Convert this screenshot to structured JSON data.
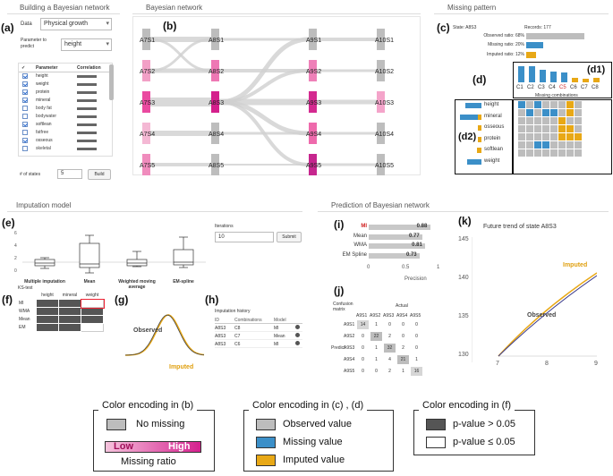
{
  "panels": {
    "build": "Building a Bayesian network",
    "bayes": "Bayesian network",
    "missing": "Missing pattern",
    "impute": "Imputation model",
    "predict": "Prediction of Bayesian network"
  },
  "labels": {
    "a": "(a)",
    "b": "(b)",
    "c": "(c)",
    "d": "(d)",
    "d1": "(d1)",
    "d2": "(d2)",
    "e": "(e)",
    "f": "(f)",
    "g": "(g)",
    "h": "(h)",
    "i": "(i)",
    "j": "(j)",
    "k": "(k)"
  },
  "build": {
    "data_label": "Data",
    "data_value": "Physical growth",
    "param_label": "Parameter to predict",
    "param_value": "height",
    "col_check": "✓",
    "col_param": "Parameter",
    "col_corr": "Correlation",
    "params": [
      {
        "name": "height",
        "checked": true
      },
      {
        "name": "weight",
        "checked": true
      },
      {
        "name": "protein",
        "checked": true
      },
      {
        "name": "mineral",
        "checked": true
      },
      {
        "name": "body fat",
        "checked": false
      },
      {
        "name": "bodywater",
        "checked": false
      },
      {
        "name": "softlean",
        "checked": true
      },
      {
        "name": "fatfree",
        "checked": false
      },
      {
        "name": "osseous",
        "checked": true
      },
      {
        "name": "skeletal",
        "checked": false
      }
    ],
    "states_label": "# of states",
    "states_value": "5",
    "build_btn": "Build"
  },
  "bayes": {
    "cols": [
      [
        "A7S1",
        "A7S2",
        "A7S3",
        "A7S4",
        "A7S5"
      ],
      [
        "A8S1",
        "A8S2",
        "A8S3",
        "A8S4",
        "A8S5"
      ],
      [
        "A9S1",
        "A9S2",
        "A9S3",
        "A9S4",
        "A9S5"
      ],
      [
        "A10S1",
        "A10S2",
        "A10S3",
        "A10S4",
        "A10S5"
      ]
    ]
  },
  "missing": {
    "state": "State: A8S3",
    "records": "Records: 177",
    "obs": "Observed ratio: 68%",
    "obs_v": 0.68,
    "mis": "Missing ratio: 20%",
    "mis_v": 0.2,
    "imp": "Imputed ratio: 12%",
    "imp_v": 0.12,
    "combos": [
      "C1",
      "C2",
      "C3",
      "C4",
      "C5",
      "C6",
      "C7",
      "C8"
    ],
    "combos_title": "Missing combinations",
    "rows": [
      "height",
      "mineral",
      "osseous",
      "protein",
      "softlean",
      "weight"
    ]
  },
  "impute": {
    "iter_label": "Iterations",
    "iter_value": "10",
    "submit": "Submit",
    "yticks": [
      "6",
      "4",
      "2",
      "0"
    ],
    "models": [
      "Multiple imputation",
      "Mean",
      "Weighted moving average",
      "EM-spline"
    ],
    "ks_title": "KS-test",
    "ks_cols": [
      "height",
      "mineral",
      "weight"
    ],
    "ks_rows": [
      "MI",
      "WMA",
      "Mean",
      "EM"
    ],
    "observed": "Observed",
    "imputed": "Imputed",
    "hist_title": "Imputation history",
    "hist_cols": [
      "ID",
      "Combinations",
      "Model"
    ],
    "hist": [
      [
        "A8S3",
        "C8",
        "MI"
      ],
      [
        "A8S3",
        "C7",
        "Mean"
      ],
      [
        "A8S3",
        "C6",
        "MI"
      ]
    ]
  },
  "predict": {
    "methods": [
      {
        "name": "MI",
        "v": 0.88,
        "label": "0.88"
      },
      {
        "name": "Mean",
        "v": 0.77,
        "label": "0.77"
      },
      {
        "name": "WMA",
        "v": 0.81,
        "label": "0.81"
      },
      {
        "name": "EM Spline",
        "v": 0.73,
        "label": "0.73"
      }
    ],
    "xticks": [
      "0",
      "0.5",
      "1"
    ],
    "xlabel": "Precision",
    "conf_title": "Confusion matrix",
    "actual": "Actual",
    "pred": "Predict",
    "states": [
      "A9S1",
      "A9S2",
      "A9S3",
      "A9S4",
      "A9S5"
    ],
    "matrix": [
      [
        "14",
        "1",
        "0",
        "0",
        "0"
      ],
      [
        "0",
        "22",
        "2",
        "0",
        "0"
      ],
      [
        "0",
        "1",
        "32",
        "2",
        "0"
      ],
      [
        "0",
        "1",
        "4",
        "21",
        "1"
      ],
      [
        "0",
        "0",
        "2",
        "1",
        "16"
      ]
    ],
    "trend_title": "Future trend of state A8S3",
    "yticks": [
      "145",
      "140",
      "135",
      "130"
    ],
    "xticks2": [
      "7",
      "8",
      "9"
    ],
    "imputed": "Imputed",
    "observed": "Observed"
  },
  "legend": {
    "b_title": "Color encoding  in (b)",
    "no_missing": "No missing",
    "low": "Low",
    "high": "High",
    "ratio": "Missing ratio",
    "cd_title": "Color encoding in  (c) , (d)",
    "observed": "Observed value",
    "missing": "Missing value",
    "imputed": "Imputed value",
    "f_title": "Color encoding  in (f)",
    "p_gt": "p-value > 0.05",
    "p_le": "p-value ≤ 0.05"
  }
}
